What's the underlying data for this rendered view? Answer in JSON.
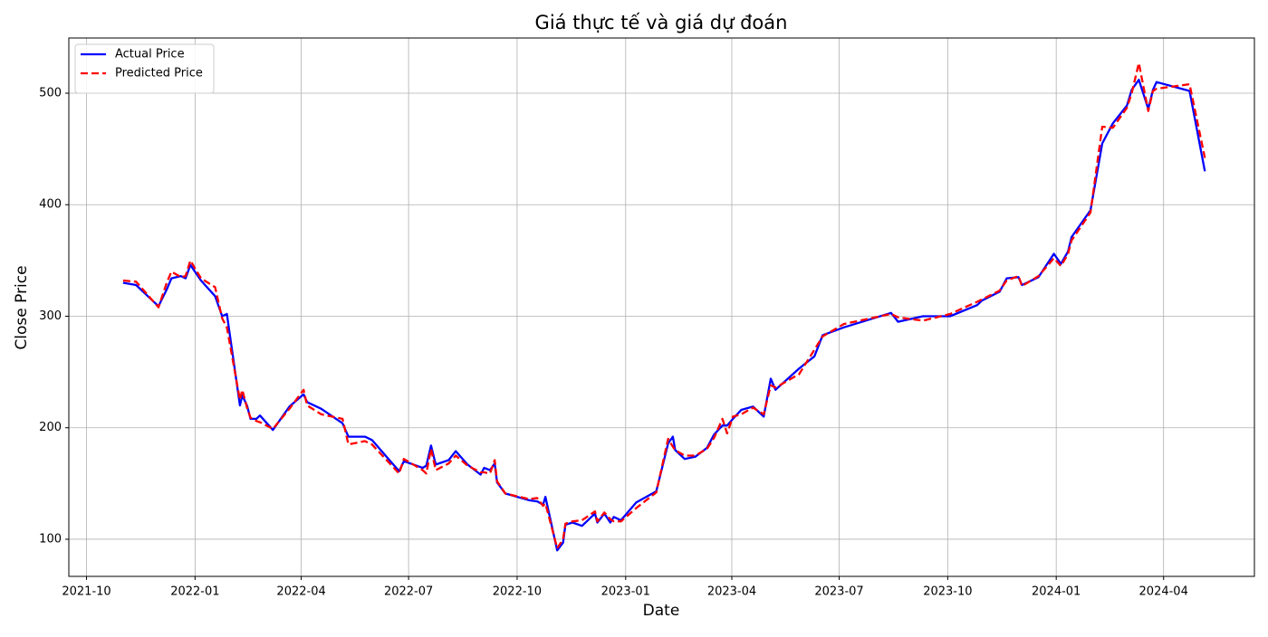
{
  "chart_data": {
    "type": "line",
    "title": "Giá thực tế và giá dự đoán",
    "xlabel": "Date",
    "ylabel": "Close Price",
    "x": [
      "2021-11-01",
      "2021-11-12",
      "2021-12-01",
      "2021-12-08",
      "2021-12-12",
      "2021-12-20",
      "2021-12-24",
      "2021-12-28",
      "2022-01-06",
      "2022-01-18",
      "2022-01-24",
      "2022-01-28",
      "2022-02-08",
      "2022-02-10",
      "2022-02-14",
      "2022-02-17",
      "2022-02-22",
      "2022-02-25",
      "2022-03-08",
      "2022-03-22",
      "2022-04-03",
      "2022-04-06",
      "2022-04-18",
      "2022-05-06",
      "2022-05-11",
      "2022-05-25",
      "2022-05-31",
      "2022-06-23",
      "2022-06-27",
      "2022-07-13",
      "2022-07-16",
      "2022-07-20",
      "2022-07-24",
      "2022-08-04",
      "2022-08-10",
      "2022-08-20",
      "2022-08-31",
      "2022-09-03",
      "2022-09-08",
      "2022-09-12",
      "2022-09-14",
      "2022-09-21",
      "2022-10-11",
      "2022-10-18",
      "2022-10-23",
      "2022-10-25",
      "2022-11-04",
      "2022-11-09",
      "2022-11-11",
      "2022-11-17",
      "2022-11-25",
      "2022-12-06",
      "2022-12-08",
      "2022-12-14",
      "2022-12-19",
      "2022-12-22",
      "2022-12-28",
      "2023-01-10",
      "2023-01-27",
      "2023-02-06",
      "2023-02-10",
      "2023-02-12",
      "2023-02-20",
      "2023-03-01",
      "2023-03-11",
      "2023-03-17",
      "2023-03-24",
      "2023-03-28",
      "2023-04-02",
      "2023-04-09",
      "2023-04-19",
      "2023-04-28",
      "2023-05-04",
      "2023-05-08",
      "2023-05-28",
      "2023-06-10",
      "2023-06-17",
      "2023-07-05",
      "2023-08-14",
      "2023-08-20",
      "2023-09-10",
      "2023-10-03",
      "2023-10-26",
      "2023-10-30",
      "2023-11-14",
      "2023-11-20",
      "2023-11-30",
      "2023-12-03",
      "2023-12-17",
      "2023-12-30",
      "2024-01-05",
      "2024-01-11",
      "2024-01-14",
      "2024-01-30",
      "2024-02-09",
      "2024-02-18",
      "2024-03-01",
      "2024-03-05",
      "2024-03-11",
      "2024-03-19",
      "2024-03-23",
      "2024-03-26",
      "2024-04-23",
      "2024-05-06"
    ],
    "series": [
      {
        "name": "Actual Price",
        "color": "#0000ff",
        "dashed": false,
        "values": [
          330,
          328,
          309,
          324,
          334,
          336,
          334,
          346,
          332,
          318,
          300,
          302,
          220,
          229,
          220,
          208,
          208,
          211,
          198,
          219,
          230,
          223,
          217,
          204,
          192,
          192,
          189,
          161,
          170,
          164,
          166,
          184,
          167,
          171,
          179,
          167,
          158,
          164,
          162,
          168,
          151,
          141,
          135,
          134,
          131,
          138,
          90,
          97,
          113,
          115,
          112,
          123,
          115,
          123,
          115,
          120,
          117,
          133,
          143,
          186,
          192,
          180,
          172,
          174,
          182,
          194,
          202,
          202,
          208,
          216,
          219,
          210,
          244,
          234,
          253,
          264,
          283,
          290,
          303,
          295,
          300,
          300,
          310,
          314,
          322,
          334,
          335,
          328,
          335,
          356,
          347,
          358,
          371,
          395,
          455,
          473,
          489,
          503,
          512,
          486,
          503,
          510,
          502,
          430
        ]
      },
      {
        "name": "Predicted Price",
        "color": "#ff0000",
        "dashed": true,
        "values": [
          332,
          331,
          308,
          330,
          340,
          335,
          336,
          350,
          334,
          326,
          298,
          290,
          225,
          234,
          218,
          209,
          206,
          205,
          199,
          217,
          234,
          220,
          212,
          208,
          185,
          188,
          185,
          159,
          172,
          162,
          159,
          181,
          162,
          168,
          175,
          166,
          160,
          160,
          159,
          171,
          152,
          141,
          136,
          137,
          130,
          132,
          92,
          100,
          114,
          116,
          117,
          125,
          116,
          124,
          118,
          116,
          116,
          128,
          142,
          190,
          183,
          180,
          175,
          175,
          181,
          191,
          208,
          195,
          210,
          212,
          218,
          212,
          238,
          236,
          248,
          270,
          282,
          293,
          302,
          299,
          296,
          302,
          313,
          315,
          323,
          332,
          336,
          327,
          336,
          352,
          345,
          356,
          368,
          393,
          470,
          469,
          487,
          500,
          527,
          484,
          502,
          504,
          508,
          442
        ]
      }
    ],
    "xlim": [
      "2021-09-16",
      "2024-06-17"
    ],
    "xticks": [
      "2021-10",
      "2022-01",
      "2022-04",
      "2022-07",
      "2022-10",
      "2023-01",
      "2023-04",
      "2023-07",
      "2023-10",
      "2024-01",
      "2024-04"
    ],
    "ylim": [
      66.7,
      549.5
    ],
    "yticks": [
      100,
      200,
      300,
      400,
      500
    ],
    "grid": true,
    "legend": "upper-left"
  }
}
